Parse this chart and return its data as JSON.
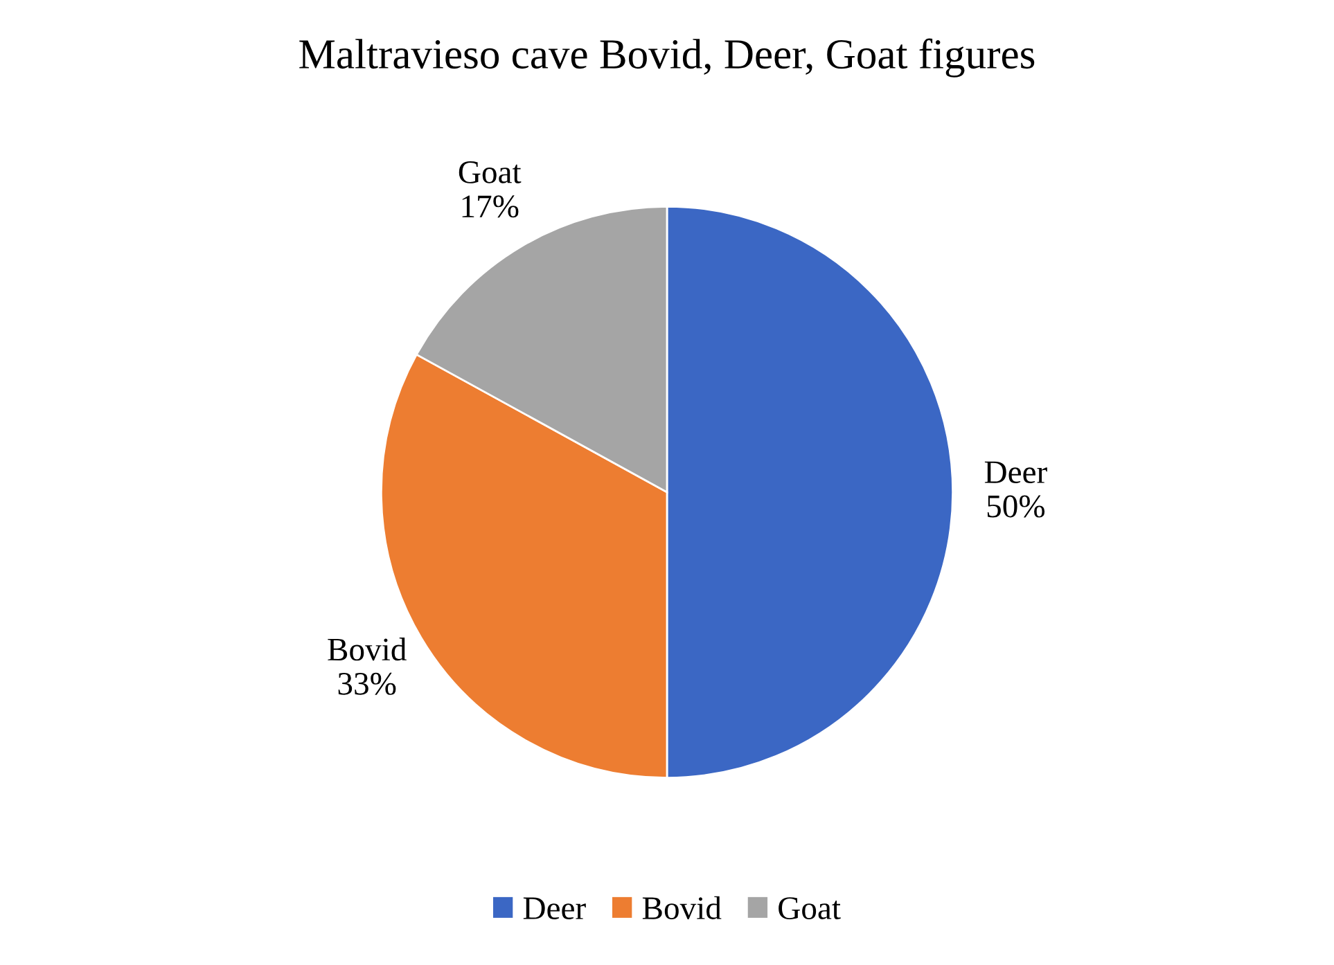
{
  "chart_data": {
    "type": "pie",
    "title": "Maltravieso cave Bovid, Deer, Goat figures",
    "categories": [
      "Deer",
      "Bovid",
      "Goat"
    ],
    "values": [
      50,
      33,
      17
    ],
    "value_labels": [
      "50%",
      "33%",
      "17%"
    ],
    "colors": [
      "#3b67c4",
      "#ed7d31",
      "#a5a5a5"
    ],
    "legend": "bottom"
  }
}
